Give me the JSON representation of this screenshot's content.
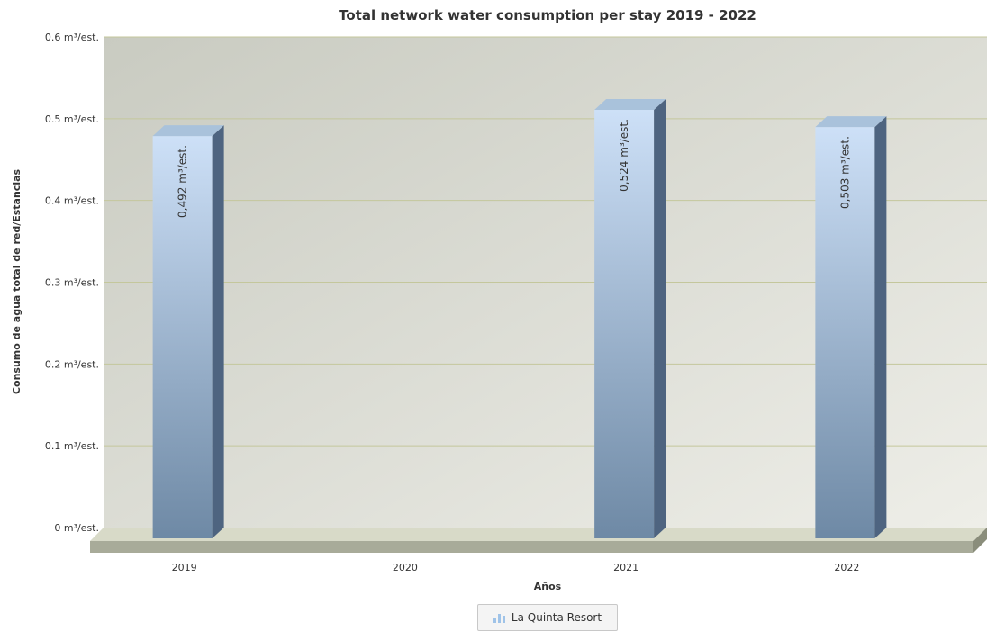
{
  "colors": {
    "plot_bg_dark": "#c9cbc1",
    "plot_bg_light": "#eeeee8",
    "gridline": "#c4c79c",
    "bar_top": "#cde0f7",
    "bar_bottom": "#6e89a5",
    "bar_side": "#4e6480",
    "bar_cap": "#a9c2db",
    "floor_front": "#a8ab99",
    "floor_top": "#d8dac8"
  },
  "chart_data": {
    "type": "bar",
    "title": "Total network water consumption per stay 2019 - 2022",
    "xlabel": "Años",
    "ylabel": "Consumo de agua total de red/Estancias",
    "categories": [
      "2019",
      "2020",
      "2021",
      "2022"
    ],
    "series": [
      {
        "name": "La Quinta Resort",
        "values": [
          0.492,
          null,
          0.524,
          0.503
        ],
        "data_labels": [
          "0,492 m³/est.",
          "",
          "0,524 m³/est.",
          "0,503 m³/est."
        ]
      }
    ],
    "ylim": [
      0,
      0.6
    ],
    "yticks": [
      0,
      0.1,
      0.2,
      0.3,
      0.4,
      0.5,
      0.6
    ],
    "ytick_labels": [
      "0 m³/est.",
      "0.1 m³/est.",
      "0.2 m³/est.",
      "0.3 m³/est.",
      "0.4 m³/est.",
      "0.5 m³/est.",
      "0.6 m³/est."
    ],
    "grid": true,
    "legend": {
      "position": "bottom-center",
      "items": [
        "La Quinta Resort"
      ]
    }
  }
}
